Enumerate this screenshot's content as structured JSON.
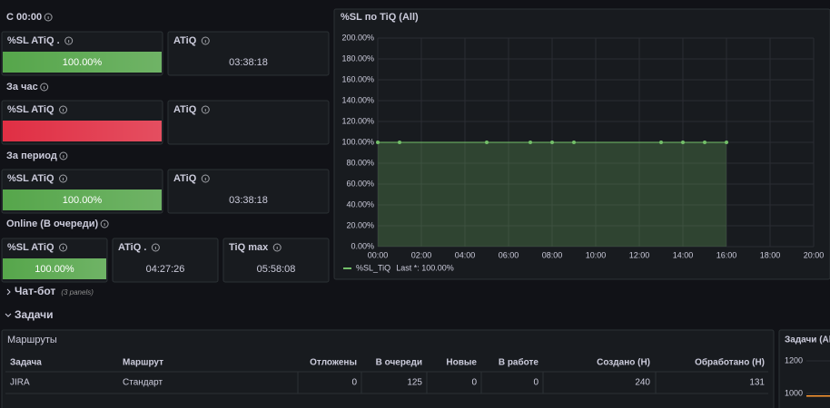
{
  "sections": [
    {
      "title": "С 00:00",
      "panels": [
        {
          "title": "%SL ATiQ .",
          "value": "100.00%",
          "color": "#56a64b"
        },
        {
          "title": "ATiQ",
          "value": "03:38:18"
        }
      ]
    },
    {
      "title": "За час",
      "panels": [
        {
          "title": "%SL ATiQ",
          "color": "#e02f44"
        },
        {
          "title": "ATiQ"
        }
      ]
    },
    {
      "title": "За период",
      "panels": [
        {
          "title": "%SL ATiQ",
          "value": "100.00%",
          "color": "#56a64b"
        },
        {
          "title": "ATiQ",
          "value": "03:38:18"
        }
      ]
    },
    {
      "title": "Online (В очереди)",
      "panels": [
        {
          "title": "%SL ATiQ",
          "value": "100.00%",
          "color": "#56a64b"
        },
        {
          "title": "ATiQ .",
          "value": "04:27:26"
        },
        {
          "title": "TiQ max",
          "value": "05:58:08"
        }
      ]
    }
  ],
  "chart_data": [
    {
      "type": "line",
      "title": "%SL по TiQ (All)",
      "x": [
        0,
        1,
        5,
        7,
        8,
        9,
        13,
        14,
        15,
        16
      ],
      "series": [
        {
          "name": "%SL_TiQ",
          "color": "#73bf69",
          "values": [
            100,
            100,
            100,
            100,
            100,
            100,
            100,
            100,
            100,
            100
          ]
        }
      ],
      "legend_stat": "Last *: 100.00%",
      "grid": true,
      "area": true,
      "xlim": [
        0,
        20
      ],
      "xticks": [
        {
          "value": 0,
          "label": "00:00"
        },
        {
          "value": 2,
          "label": "02:00"
        },
        {
          "value": 4,
          "label": "04:00"
        },
        {
          "value": 6,
          "label": "06:00"
        },
        {
          "value": 8,
          "label": "08:00"
        },
        {
          "value": 10,
          "label": "10:00"
        },
        {
          "value": 12,
          "label": "12:00"
        },
        {
          "value": 14,
          "label": "14:00"
        },
        {
          "value": 16,
          "label": "16:00"
        },
        {
          "value": 18,
          "label": "18:00"
        },
        {
          "value": 20,
          "label": "20:00"
        }
      ],
      "ylim": [
        0,
        200
      ],
      "yticks": [
        {
          "value": 0,
          "label": "0.00%"
        },
        {
          "value": 20,
          "label": "20.00%"
        },
        {
          "value": 40,
          "label": "40.00%"
        },
        {
          "value": 60,
          "label": "60.00%"
        },
        {
          "value": 80,
          "label": "80.00%"
        },
        {
          "value": 100,
          "label": "100.00%"
        },
        {
          "value": 120,
          "label": "120.00%"
        },
        {
          "value": 140,
          "label": "140.00%"
        },
        {
          "value": 160,
          "label": "160.00%"
        },
        {
          "value": 180,
          "label": "180.00%"
        },
        {
          "value": 200,
          "label": "200.00%"
        }
      ]
    },
    {
      "type": "line",
      "title": "Задачи (All",
      "ylim": [
        900,
        1250
      ],
      "yticks": [
        1200,
        1000
      ],
      "series": [
        {
          "color": "#ff9830",
          "values": [
            985,
            985
          ]
        }
      ]
    }
  ],
  "rows": [
    {
      "title": "Чат-бот",
      "note": "(3 panels)"
    },
    {
      "title": "Задачи"
    }
  ],
  "table": {
    "title": "Маршруты",
    "columns": [
      "Задача",
      "Маршрут",
      "Отложены",
      "В очереди",
      "Новые",
      "В работе",
      "Создано (H)",
      "Обработано (H)"
    ],
    "rows": [
      [
        "JIRA",
        "Стандарт",
        0,
        125,
        0,
        0,
        240,
        131
      ]
    ]
  }
}
